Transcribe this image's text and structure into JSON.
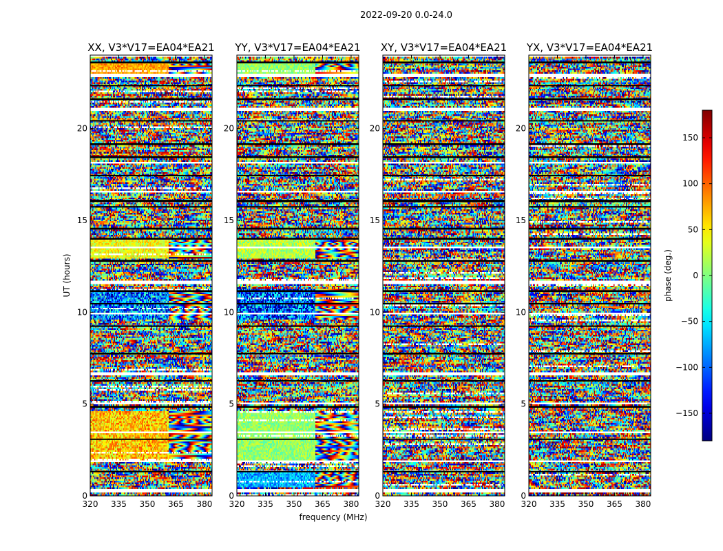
{
  "figure": {
    "suptitle": "2022-09-20 0.0-24.0"
  },
  "chart_data": {
    "type": "heatmap",
    "xlabel": "frequency (MHz)",
    "ylabel": "UT (hours)",
    "xlim": [
      320,
      384
    ],
    "ylim": [
      0,
      24
    ],
    "xticks": [
      320,
      335,
      350,
      365,
      380
    ],
    "yticks": [
      0,
      5,
      10,
      15,
      20
    ],
    "colorbar": {
      "label": "phase (deg.)",
      "range": [
        -180,
        180
      ],
      "ticks": [
        -150,
        -100,
        -50,
        0,
        50,
        100,
        150
      ],
      "colormap": "jet"
    },
    "panels": [
      {
        "title": "XX, V3*V17=EA04*EA21",
        "correlation": "XX",
        "fringe_start_mhz": 361
      },
      {
        "title": "YY, V3*V17=EA04*EA21",
        "correlation": "YY",
        "fringe_start_mhz": 361
      },
      {
        "title": "XY, V3*V17=EA04*EA21",
        "correlation": "XY"
      },
      {
        "title": "YX, V3*V17=EA04*EA21",
        "correlation": "YX"
      }
    ],
    "flagged_ut_hours": [
      [
        23.55,
        23.65
      ],
      [
        22.3,
        22.38
      ],
      [
        21.55,
        21.65
      ],
      [
        20.4,
        20.46
      ],
      [
        19.1,
        19.2
      ],
      [
        18.4,
        18.5
      ],
      [
        17.4,
        17.48
      ],
      [
        16.0,
        16.12
      ],
      [
        15.7,
        15.78
      ],
      [
        14.5,
        14.6
      ],
      [
        13.95,
        14.05
      ],
      [
        12.75,
        12.85
      ],
      [
        11.1,
        11.2
      ],
      [
        10.45,
        10.5
      ],
      [
        9.2,
        9.28
      ],
      [
        7.7,
        7.8
      ],
      [
        6.25,
        6.3
      ],
      [
        4.8,
        4.9
      ],
      [
        3.05,
        3.12
      ],
      [
        1.3,
        1.36
      ]
    ],
    "gap_ut_hours": [
      [
        23.9,
        24.0
      ],
      [
        22.8,
        22.95
      ],
      [
        21.0,
        21.1
      ],
      [
        18.05,
        18.15
      ],
      [
        16.5,
        16.6
      ],
      [
        13.5,
        13.6
      ],
      [
        11.5,
        11.75
      ],
      [
        9.85,
        9.95
      ],
      [
        6.6,
        6.7
      ],
      [
        4.95,
        5.1
      ],
      [
        3.45,
        3.55
      ],
      [
        1.8,
        1.9
      ],
      [
        0.2,
        0.35
      ]
    ]
  }
}
